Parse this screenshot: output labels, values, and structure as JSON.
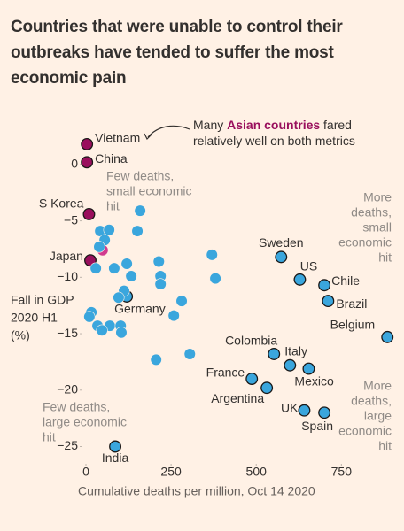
{
  "chart_data": {
    "type": "scatter",
    "title": "Countries that were unable to control their outbreaks have tended to suffer the most economic pain",
    "x_label": "Cumulative deaths per million, Oct 14 2020",
    "y_label_lines": [
      "Fall in GDP",
      "2020 H1",
      "(%)"
    ],
    "xlim": [
      0,
      900
    ],
    "ylim": [
      -27,
      2.5
    ],
    "xticks": [
      0,
      250,
      500,
      750
    ],
    "yticks": [
      0,
      {
        "value": -5,
        "label": "−5"
      },
      {
        "value": -10,
        "label": "−10"
      },
      {
        "value": -15,
        "label": "−15"
      },
      {
        "value": -20,
        "label": "−20"
      },
      {
        "value": -25,
        "label": "−25"
      }
    ],
    "grid": false,
    "annotations": [
      {
        "lines": [
          "Few deaths,",
          "small economic",
          "hit"
        ]
      },
      {
        "lines": [
          "More",
          "deaths,",
          "small",
          "economic",
          "hit"
        ]
      },
      {
        "lines": [
          "More",
          "deaths,",
          "large",
          "economic",
          "hit"
        ]
      },
      {
        "lines": [
          "Few deaths,",
          "large economic",
          "hit"
        ]
      }
    ],
    "callout": {
      "lines": [
        [
          "Many ",
          "Asian countries",
          " fared"
        ],
        [
          "relatively well on both metrics"
        ]
      ],
      "highlight_color": "#990f5d"
    },
    "points": [
      {
        "label": "Vietnam",
        "x": 3,
        "y": 1.8,
        "color": "#990f5d",
        "outline": true
      },
      {
        "label": "China",
        "x": 3,
        "y": 0.2,
        "color": "#990f5d",
        "outline": true
      },
      {
        "label": "S Korea",
        "x": 9,
        "y": -4.4,
        "color": "#990f5d",
        "outline": true
      },
      {
        "label": "Japan",
        "x": 13,
        "y": -8.5,
        "color": "#990f5d",
        "outline": true
      },
      {
        "label": "Germany",
        "x": 120,
        "y": -11.7,
        "color": "#3aa6dd",
        "outline": true
      },
      {
        "label": "Sweden",
        "x": 573,
        "y": -8.2,
        "color": "#3aa6dd",
        "outline": true
      },
      {
        "label": "US",
        "x": 628,
        "y": -10.2,
        "color": "#3aa6dd",
        "outline": true
      },
      {
        "label": "Chile",
        "x": 700,
        "y": -10.7,
        "color": "#3aa6dd",
        "outline": true
      },
      {
        "label": "Brazil",
        "x": 711,
        "y": -12.1,
        "color": "#3aa6dd",
        "outline": true
      },
      {
        "label": "Belgium",
        "x": 885,
        "y": -15.3,
        "color": "#3aa6dd",
        "outline": true
      },
      {
        "label": "Colombia",
        "x": 552,
        "y": -16.8,
        "color": "#3aa6dd",
        "outline": true
      },
      {
        "label": "Italy",
        "x": 599,
        "y": -17.8,
        "color": "#3aa6dd",
        "outline": true
      },
      {
        "label": "Mexico",
        "x": 654,
        "y": -18.1,
        "color": "#3aa6dd",
        "outline": true
      },
      {
        "label": "France",
        "x": 487,
        "y": -19,
        "color": "#3aa6dd",
        "outline": true
      },
      {
        "label": "Argentina",
        "x": 531,
        "y": -19.8,
        "color": "#3aa6dd",
        "outline": true
      },
      {
        "label": "UK",
        "x": 641,
        "y": -21.8,
        "color": "#3aa6dd",
        "outline": true
      },
      {
        "label": "Spain",
        "x": 700,
        "y": -22,
        "color": "#3aa6dd",
        "outline": true
      },
      {
        "label": "India",
        "x": 86,
        "y": -25,
        "color": "#3aa6dd",
        "outline": true
      },
      {
        "x": 49,
        "y": -7.6,
        "color": "#d13b8f",
        "outline": false
      },
      {
        "x": 159,
        "y": -4.1,
        "color": "#3aa6dd",
        "outline": false
      },
      {
        "x": 151,
        "y": -5.9,
        "color": "#3aa6dd",
        "outline": false
      },
      {
        "x": 42,
        "y": -5.9,
        "color": "#3aa6dd",
        "outline": false
      },
      {
        "x": 68,
        "y": -5.8,
        "color": "#3aa6dd",
        "outline": false
      },
      {
        "x": 55,
        "y": -6.7,
        "color": "#3aa6dd",
        "outline": false
      },
      {
        "x": 39,
        "y": -7.3,
        "color": "#3aa6dd",
        "outline": false
      },
      {
        "x": 370,
        "y": -8.0,
        "color": "#3aa6dd",
        "outline": false
      },
      {
        "x": 214,
        "y": -8.6,
        "color": "#3aa6dd",
        "outline": false
      },
      {
        "x": 83,
        "y": -9.2,
        "color": "#3aa6dd",
        "outline": false
      },
      {
        "x": 120,
        "y": -8.8,
        "color": "#3aa6dd",
        "outline": false
      },
      {
        "x": 29,
        "y": -9.2,
        "color": "#3aa6dd",
        "outline": false
      },
      {
        "x": 219,
        "y": -9.9,
        "color": "#3aa6dd",
        "outline": false
      },
      {
        "x": 219,
        "y": -10.6,
        "color": "#3aa6dd",
        "outline": false
      },
      {
        "x": 380,
        "y": -10.1,
        "color": "#3aa6dd",
        "outline": false
      },
      {
        "x": 133,
        "y": -9.9,
        "color": "#3aa6dd",
        "outline": false
      },
      {
        "x": 112,
        "y": -11.2,
        "color": "#3aa6dd",
        "outline": false
      },
      {
        "x": 96,
        "y": -11.8,
        "color": "#3aa6dd",
        "outline": false
      },
      {
        "x": 281,
        "y": -12.1,
        "color": "#3aa6dd",
        "outline": false
      },
      {
        "x": 16,
        "y": -13.1,
        "color": "#3aa6dd",
        "outline": false
      },
      {
        "x": 10,
        "y": -13.5,
        "color": "#3aa6dd",
        "outline": false
      },
      {
        "x": 258,
        "y": -13.4,
        "color": "#3aa6dd",
        "outline": false
      },
      {
        "x": 34,
        "y": -14.3,
        "color": "#3aa6dd",
        "outline": false
      },
      {
        "x": 70,
        "y": -14.3,
        "color": "#3aa6dd",
        "outline": false
      },
      {
        "x": 47,
        "y": -14.7,
        "color": "#3aa6dd",
        "outline": false
      },
      {
        "x": 102,
        "y": -14.3,
        "color": "#3aa6dd",
        "outline": false
      },
      {
        "x": 104,
        "y": -14.9,
        "color": "#3aa6dd",
        "outline": false
      },
      {
        "x": 305,
        "y": -16.8,
        "color": "#3aa6dd",
        "outline": false
      },
      {
        "x": 206,
        "y": -17.3,
        "color": "#3aa6dd",
        "outline": false
      }
    ]
  }
}
